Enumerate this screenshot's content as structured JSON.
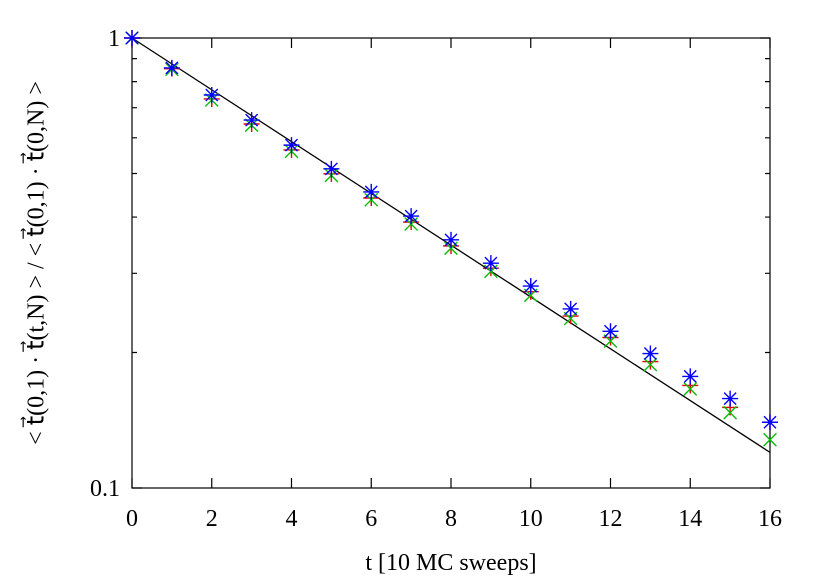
{
  "chart_data": {
    "type": "scatter",
    "log_y": true,
    "xlabel": "t [10 MC sweeps]",
    "ylabel": "< t⃗(0,1) · t⃗(t,N) > / < t⃗(0,1) · t⃗(0,N) >",
    "xlim": [
      0,
      16
    ],
    "xticks": [
      0,
      2,
      4,
      6,
      8,
      10,
      12,
      14,
      16
    ],
    "ylim": [
      0.1,
      1
    ],
    "yticks": [
      0.1,
      1
    ],
    "yminor": [
      0.2,
      0.3,
      0.4,
      0.5,
      0.6,
      0.7,
      0.8,
      0.9
    ],
    "x": [
      0,
      1,
      2,
      3,
      4,
      5,
      6,
      7,
      8,
      9,
      10,
      11,
      12,
      13,
      14,
      15,
      16
    ],
    "series": [
      {
        "marker": "plus",
        "color": "#e00000",
        "values": [
          1,
          0.855,
          0.732,
          0.644,
          0.564,
          0.499,
          0.441,
          0.39,
          0.345,
          0.308,
          0.273,
          0.241,
          0.216,
          0.191,
          0.169,
          0.151,
          0.14
        ]
      },
      {
        "marker": "cross",
        "color": "#00c000",
        "values": [
          1,
          0.852,
          0.728,
          0.64,
          0.56,
          0.495,
          0.437,
          0.386,
          0.341,
          0.303,
          0.268,
          0.238,
          0.212,
          0.188,
          0.166,
          0.147,
          0.128
        ]
      },
      {
        "marker": "star",
        "color": "#0000ff",
        "values": [
          1,
          0.858,
          0.747,
          0.657,
          0.578,
          0.512,
          0.455,
          0.402,
          0.356,
          0.316,
          0.281,
          0.25,
          0.223,
          0.199,
          0.177,
          0.158,
          0.14
        ]
      }
    ],
    "fit": {
      "color": "#000000",
      "x": [
        0,
        16
      ],
      "values": [
        1,
        0.12
      ]
    }
  }
}
